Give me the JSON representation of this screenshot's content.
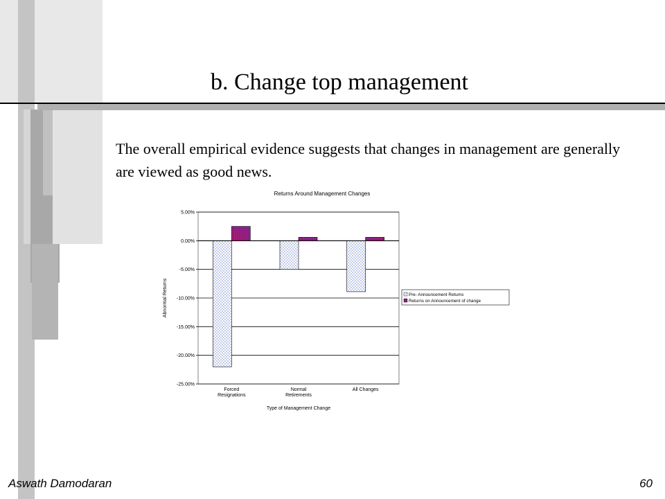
{
  "slide": {
    "title": "b. Change top management",
    "bullet_symbol": "",
    "body": "The overall empirical evidence suggests that changes in management are generally are viewed as good news."
  },
  "footer": {
    "author": "Aswath Damodaran",
    "page": "60"
  },
  "chart_data": {
    "type": "bar",
    "title": "Returns Around Management Changes",
    "xlabel": "Type of Management Change",
    "ylabel": "Abnormal Returns",
    "categories": [
      [
        "Forced",
        "Resignations"
      ],
      [
        "Normal",
        "Retirements"
      ],
      [
        "All Changes"
      ]
    ],
    "series": [
      {
        "name": "Pre- Announcement Returns",
        "values": [
          -22.0,
          -5.0,
          -8.9
        ],
        "color": "#9aa8d8"
      },
      {
        "name": "Returns on Announcement of change",
        "values": [
          2.5,
          0.6,
          0.6
        ],
        "color": "#7a1f8a"
      }
    ],
    "ylim": [
      -25,
      5
    ],
    "yticks": [
      "5.00%",
      "0.00%",
      "-5.00%",
      "-10.00%",
      "-15.00%",
      "-20.00%",
      "-25.00%"
    ],
    "ytick_values": [
      5,
      0,
      -5,
      -10,
      -15,
      -20,
      -25
    ],
    "grid": true,
    "legend": "right"
  }
}
